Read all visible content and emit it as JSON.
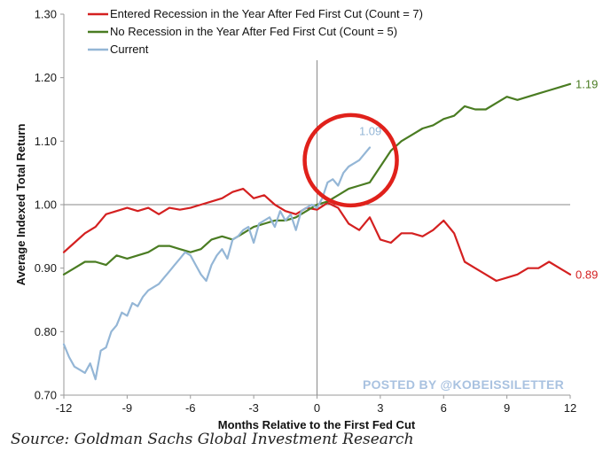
{
  "chart_data": {
    "type": "line",
    "xlabel": "Months Relative to the First Fed Cut",
    "ylabel": "Average Indexed Total Return",
    "xlim": [
      -12,
      12
    ],
    "ylim": [
      0.7,
      1.3
    ],
    "x_ticks": [
      "-12",
      "-9",
      "-6",
      "-3",
      "0",
      "3",
      "6",
      "9",
      "12"
    ],
    "y_ticks": [
      "0.70",
      "0.80",
      "0.90",
      "1.00",
      "1.10",
      "1.20",
      "1.30"
    ],
    "reference_lines": {
      "x": 0,
      "y": 1.0
    },
    "legend_position": "top-left",
    "series": [
      {
        "name": "Entered Recession in the Year After Fed First Cut (Count = 7)",
        "color": "#d42020",
        "end_label": "0.89",
        "x": [
          -12,
          -11.5,
          -11,
          -10.5,
          -10,
          -9.5,
          -9,
          -8.5,
          -8,
          -7.5,
          -7,
          -6.5,
          -6,
          -5.5,
          -5,
          -4.5,
          -4,
          -3.5,
          -3,
          -2.5,
          -2,
          -1.5,
          -1,
          -0.5,
          0,
          0.5,
          1,
          1.5,
          2,
          2.5,
          3,
          3.5,
          4,
          4.5,
          5,
          5.5,
          6,
          6.5,
          7,
          7.5,
          8,
          8.5,
          9,
          9.5,
          10,
          10.5,
          11,
          11.5,
          12
        ],
        "values": [
          0.925,
          0.94,
          0.955,
          0.965,
          0.985,
          0.99,
          0.995,
          0.99,
          0.995,
          0.985,
          0.995,
          0.992,
          0.995,
          1.0,
          1.005,
          1.01,
          1.02,
          1.025,
          1.01,
          1.015,
          1.0,
          0.99,
          0.985,
          0.995,
          0.992,
          1.003,
          0.995,
          0.97,
          0.96,
          0.98,
          0.945,
          0.94,
          0.955,
          0.955,
          0.95,
          0.96,
          0.975,
          0.955,
          0.91,
          0.9,
          0.89,
          0.88,
          0.885,
          0.89,
          0.9,
          0.9,
          0.91,
          0.9,
          0.89
        ]
      },
      {
        "name": "No Recession in the Year After Fed First Cut (Count = 5)",
        "color": "#4a7c22",
        "end_label": "1.19",
        "x": [
          -12,
          -11.5,
          -11,
          -10.5,
          -10,
          -9.5,
          -9,
          -8.5,
          -8,
          -7.5,
          -7,
          -6.5,
          -6,
          -5.5,
          -5,
          -4.5,
          -4,
          -3.5,
          -3,
          -2.5,
          -2,
          -1.5,
          -1,
          -0.5,
          0,
          0.5,
          1,
          1.5,
          2,
          2.5,
          3,
          3.5,
          4,
          4.5,
          5,
          5.5,
          6,
          6.5,
          7,
          7.5,
          8,
          8.5,
          9,
          9.5,
          10,
          10.5,
          11,
          11.5,
          12
        ],
        "values": [
          0.89,
          0.9,
          0.91,
          0.91,
          0.905,
          0.92,
          0.915,
          0.92,
          0.925,
          0.935,
          0.935,
          0.93,
          0.925,
          0.93,
          0.945,
          0.95,
          0.945,
          0.955,
          0.965,
          0.97,
          0.975,
          0.975,
          0.98,
          0.99,
          1.0,
          1.005,
          1.015,
          1.025,
          1.03,
          1.035,
          1.06,
          1.085,
          1.1,
          1.11,
          1.12,
          1.125,
          1.135,
          1.14,
          1.155,
          1.15,
          1.15,
          1.16,
          1.17,
          1.165,
          1.17,
          1.175,
          1.18,
          1.185,
          1.19
        ]
      },
      {
        "name": "Current",
        "color": "#94b6d6",
        "end_label": "1.09",
        "x": [
          -12,
          -11.75,
          -11.5,
          -11.25,
          -11,
          -10.75,
          -10.5,
          -10.25,
          -10,
          -9.75,
          -9.5,
          -9.25,
          -9,
          -8.75,
          -8.5,
          -8.25,
          -8,
          -7.75,
          -7.5,
          -7.25,
          -7,
          -6.75,
          -6.5,
          -6.25,
          -6,
          -5.75,
          -5.5,
          -5.25,
          -5,
          -4.75,
          -4.5,
          -4.25,
          -4,
          -3.75,
          -3.5,
          -3.25,
          -3,
          -2.75,
          -2.5,
          -2.25,
          -2,
          -1.75,
          -1.5,
          -1.25,
          -1,
          -0.75,
          -0.5,
          -0.25,
          0,
          0.25,
          0.5,
          0.75,
          1,
          1.25,
          1.5,
          1.75,
          2,
          2.25,
          2.5
        ],
        "values": [
          0.78,
          0.76,
          0.745,
          0.74,
          0.735,
          0.75,
          0.725,
          0.77,
          0.775,
          0.8,
          0.81,
          0.83,
          0.825,
          0.845,
          0.84,
          0.855,
          0.865,
          0.87,
          0.875,
          0.885,
          0.895,
          0.905,
          0.915,
          0.925,
          0.92,
          0.905,
          0.89,
          0.88,
          0.905,
          0.92,
          0.93,
          0.915,
          0.945,
          0.95,
          0.96,
          0.965,
          0.94,
          0.97,
          0.975,
          0.98,
          0.965,
          0.99,
          0.975,
          0.985,
          0.96,
          0.99,
          0.995,
          1.0,
          0.995,
          1.01,
          1.035,
          1.04,
          1.03,
          1.05,
          1.06,
          1.065,
          1.07,
          1.08,
          1.09
        ]
      }
    ],
    "annotations": [
      {
        "type": "circle",
        "label": "",
        "note": "red circle highlighting the Current series crossing above 1.00 near month 0 to +3",
        "center_x": 1.6,
        "center_y": 1.07
      }
    ],
    "watermark": "POSTED BY @KOBEISSILETTER"
  },
  "source": "Source: Goldman Sachs Global Investment Research"
}
